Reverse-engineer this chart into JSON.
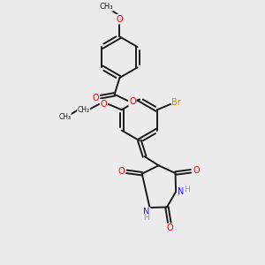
{
  "bg_color": "#ececec",
  "bond_color": "#1a1a1a",
  "bond_width": 1.4,
  "figsize": [
    3.0,
    3.0
  ],
  "dpi": 100,
  "atom_colors": {
    "O": "#ff0000",
    "N": "#1a1aff",
    "Br": "#cc8800",
    "H": "#999999",
    "C": "#1a1a1a"
  },
  "xlim": [
    0,
    10
  ],
  "ylim": [
    0,
    10
  ]
}
